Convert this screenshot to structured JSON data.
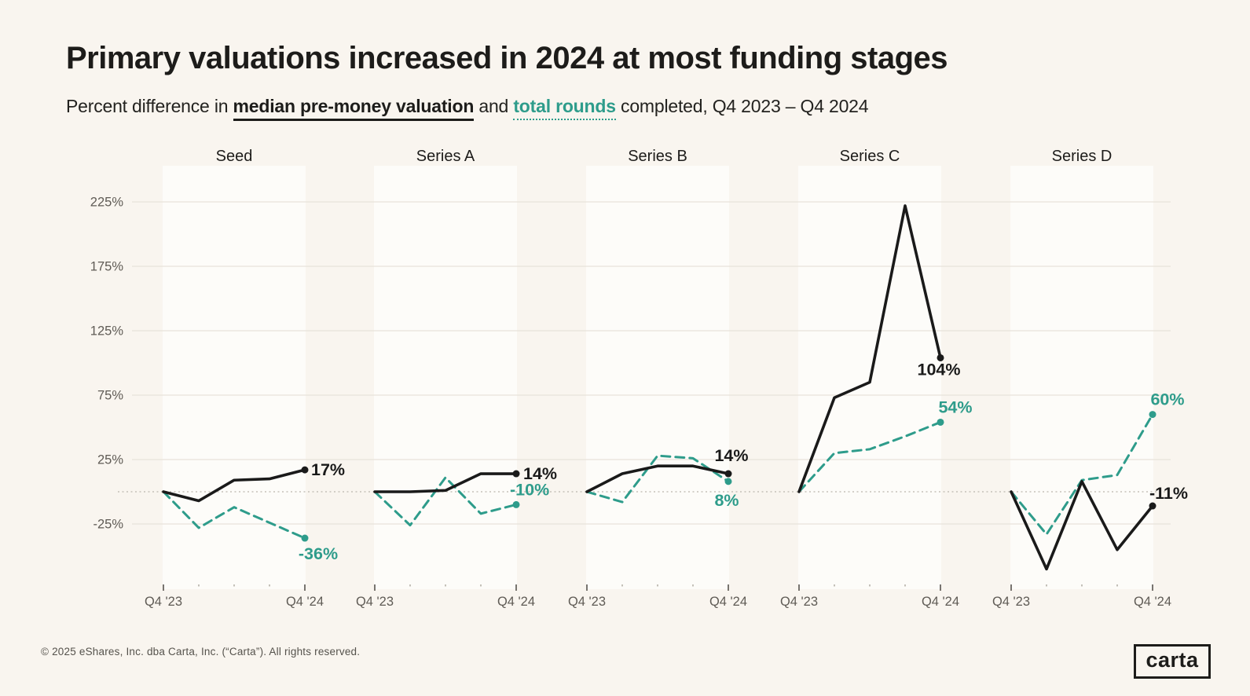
{
  "page": {
    "title": "Primary valuations increased in 2024 at most funding stages",
    "subtitle": {
      "prefix": "Percent difference in ",
      "valuation_term": "median pre-money valuation",
      "connector": " and ",
      "rounds_term": "total rounds",
      "suffix": " completed, Q4 2023 – Q4 2024"
    },
    "footer": "© 2025 eShares, Inc. dba Carta, Inc. (“Carta”). All rights reserved.",
    "logo_text": "carta"
  },
  "colors": {
    "background": "#F9F5EF",
    "panel": "#FDFCF9",
    "gridline": "#E8E3DB",
    "zero_line": "#C6C1B9",
    "axis_text": "#5F5B55",
    "tick_major": "#57534D",
    "tick_minor": "#B5B0A8",
    "valuation_line": "#1A1A1A",
    "rounds_line": "#2E9C8B",
    "stage_title": "#1D1C1A"
  },
  "chart_data": {
    "type": "line",
    "title": "Primary valuations increased in 2024 at most funding stages",
    "subtitle": "Percent difference in median pre-money valuation and total rounds completed, Q4 2023 - Q4 2024",
    "x_tick_labels": [
      "Q4 '23",
      "Q4 '24"
    ],
    "points_per_panel": 5,
    "y_axis": {
      "tick_labels": [
        "225%",
        "175%",
        "125%",
        "75%",
        "25%",
        "-25%"
      ],
      "tick_values": [
        225,
        175,
        125,
        75,
        25,
        -25
      ],
      "zero_baseline_dotted": true,
      "range": [
        -75,
        253
      ],
      "unit": "percent"
    },
    "series_meta": [
      {
        "name": "median pre-money valuation",
        "style": "solid",
        "color": "#1A1A1A"
      },
      {
        "name": "total rounds",
        "style": "dashed",
        "color": "#2E9C8B"
      }
    ],
    "panels": [
      {
        "stage": "Seed",
        "valuation": [
          0,
          -7,
          9,
          10,
          17
        ],
        "rounds": [
          0,
          -28,
          -12,
          -24,
          -36
        ],
        "valuation_end_label": "17%",
        "rounds_end_label": "-36%"
      },
      {
        "stage": "Series A",
        "valuation": [
          0,
          0,
          1,
          14,
          14
        ],
        "rounds": [
          0,
          -26,
          11,
          -17,
          -10
        ],
        "valuation_end_label": "14%",
        "rounds_end_label": "-10%"
      },
      {
        "stage": "Series B",
        "valuation": [
          0,
          14,
          20,
          20,
          14
        ],
        "rounds": [
          0,
          -8,
          28,
          26,
          8
        ],
        "valuation_end_label": "14%",
        "rounds_end_label": "8%"
      },
      {
        "stage": "Series C",
        "valuation": [
          0,
          73,
          85,
          222,
          104
        ],
        "rounds": [
          0,
          30,
          33,
          43,
          54
        ],
        "valuation_end_label": "104%",
        "rounds_end_label": "54%"
      },
      {
        "stage": "Series D",
        "valuation": [
          0,
          -60,
          8,
          -45,
          -11
        ],
        "rounds": [
          0,
          -33,
          9,
          13,
          60
        ],
        "valuation_end_label": "-11%",
        "rounds_end_label": "60%"
      }
    ]
  }
}
